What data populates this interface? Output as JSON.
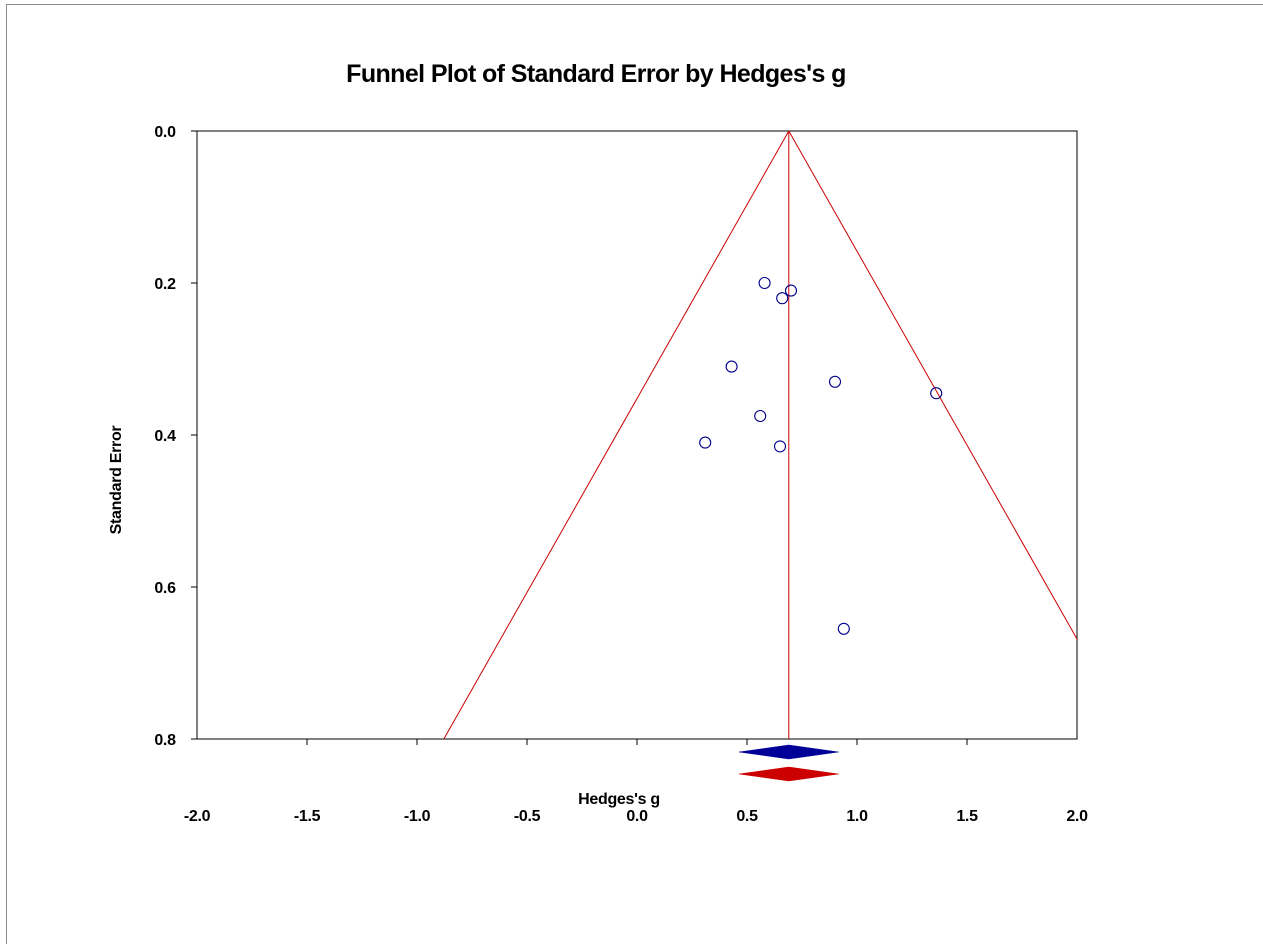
{
  "chart_data": {
    "type": "scatter",
    "title": "Funnel Plot of Standard Error by Hedges's g",
    "xlabel": "Hedges's g",
    "ylabel": "Standard Error",
    "xlim": [
      -2.0,
      2.0
    ],
    "ylim": [
      0.8,
      0.0
    ],
    "y_axis_inverted": true,
    "x_ticks": [
      "-2.0",
      "-1.5",
      "-1.0",
      "-0.5",
      "0.0",
      "0.5",
      "1.0",
      "1.5",
      "2.0"
    ],
    "y_ticks": [
      "0.0",
      "0.2",
      "0.4",
      "0.6",
      "0.8"
    ],
    "grid": false,
    "points": [
      {
        "x": 0.58,
        "y": 0.2
      },
      {
        "x": 0.7,
        "y": 0.21
      },
      {
        "x": 0.66,
        "y": 0.22
      },
      {
        "x": 0.43,
        "y": 0.31
      },
      {
        "x": 0.9,
        "y": 0.33
      },
      {
        "x": 1.36,
        "y": 0.345
      },
      {
        "x": 0.56,
        "y": 0.375
      },
      {
        "x": 0.31,
        "y": 0.41
      },
      {
        "x": 0.65,
        "y": 0.415
      },
      {
        "x": 0.94,
        "y": 0.655
      }
    ],
    "pooled_effect": 0.69,
    "funnel_lines": "pseudo 95% confidence limits around the pooled effect",
    "summary_diamonds": [
      {
        "color": "#000099",
        "center": 0.69,
        "ci": [
          0.5,
          0.88
        ]
      },
      {
        "color": "#cc0000",
        "center": 0.69,
        "ci": [
          0.5,
          0.88
        ]
      }
    ],
    "colors": {
      "points": "#00008b",
      "funnel": "#cc0000",
      "axis": "#000000"
    }
  }
}
